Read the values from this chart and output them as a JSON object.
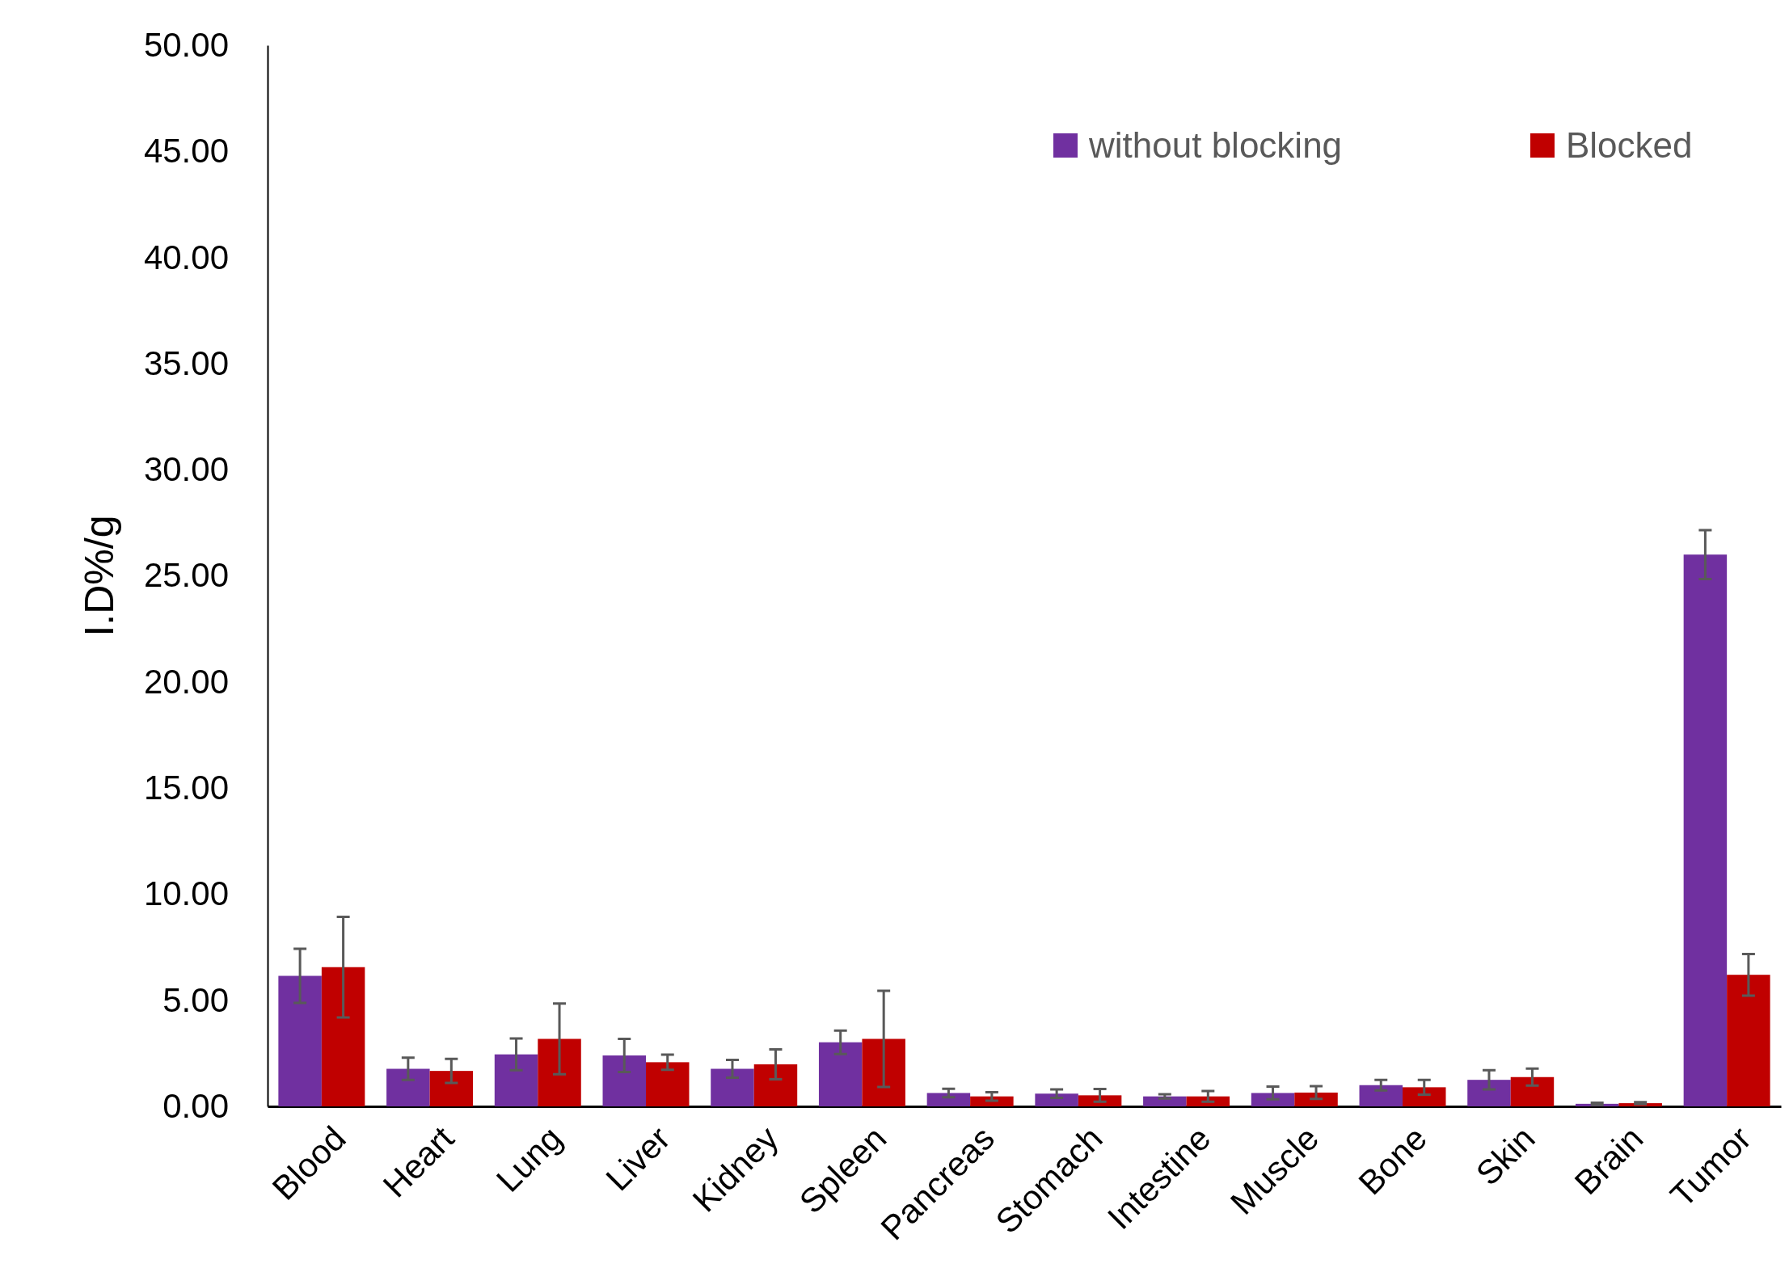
{
  "chart_data": {
    "type": "bar",
    "ylabel": "I.D%/g",
    "categories": [
      "Blood",
      "Heart",
      "Lung",
      "Liver",
      "Kidney",
      "Spleen",
      "Pancreas",
      "Stomach",
      "Intestine",
      "Muscle",
      "Bone",
      "Skin",
      "Brain",
      "Tumor"
    ],
    "series": [
      {
        "name": "without blocking",
        "color": "#7030a0",
        "values": [
          6.15,
          1.77,
          2.45,
          2.4,
          1.77,
          3.02,
          0.63,
          0.6,
          0.47,
          0.63,
          1.0,
          1.25,
          0.12,
          26.0
        ],
        "errors": [
          1.28,
          0.52,
          0.75,
          0.78,
          0.42,
          0.55,
          0.2,
          0.2,
          0.1,
          0.3,
          0.25,
          0.45,
          0.05,
          1.15
        ]
      },
      {
        "name": "Blocked",
        "color": "#c00000",
        "values": [
          6.56,
          1.67,
          3.18,
          2.08,
          1.98,
          3.18,
          0.47,
          0.52,
          0.47,
          0.65,
          0.9,
          1.38,
          0.15,
          6.2
        ],
        "errors": [
          2.37,
          0.57,
          1.67,
          0.36,
          0.7,
          2.27,
          0.2,
          0.3,
          0.25,
          0.3,
          0.35,
          0.4,
          0.05,
          0.98
        ]
      }
    ],
    "ylim": [
      0,
      50
    ],
    "yticks": [
      {
        "value": 0,
        "label": "0.00"
      },
      {
        "value": 5,
        "label": "5.00"
      },
      {
        "value": 10,
        "label": "10.00"
      },
      {
        "value": 15,
        "label": "15.00"
      },
      {
        "value": 20,
        "label": "20.00"
      },
      {
        "value": 25,
        "label": "25.00"
      },
      {
        "value": 30,
        "label": "30.00"
      },
      {
        "value": 35,
        "label": "35.00"
      },
      {
        "value": 40,
        "label": "40.00"
      },
      {
        "value": 45,
        "label": "45.00"
      },
      {
        "value": 50,
        "label": "50.00"
      }
    ],
    "grid": false,
    "legend": "top right"
  }
}
